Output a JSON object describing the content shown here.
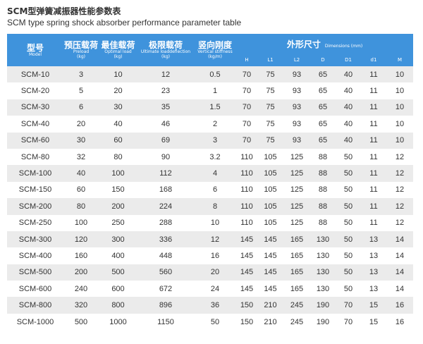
{
  "title_cn": "SCM型弹簧减振器性能参数表",
  "title_en": "SCM type spring shock absorber performance parameter table",
  "table": {
    "header": [
      {
        "cn": "型号",
        "en": "Model"
      },
      {
        "cn": "预压载荷",
        "en": "Preload",
        "unit": "(kg)"
      },
      {
        "cn": "最佳载荷",
        "en": "Optimal load",
        "unit": "(kg)"
      },
      {
        "cn": "极限载荷",
        "en": "Ultimate loaddeflection",
        "unit": "(kg)"
      },
      {
        "cn": "竖向刚度",
        "en": "Vertical stiffness",
        "unit": "(kg/m)"
      }
    ],
    "dimensions": {
      "cn": "外形尺寸",
      "en": "Dimensions (mm)",
      "columns": [
        "H",
        "L1",
        "L2",
        "D",
        "D1",
        "d1",
        "M"
      ]
    },
    "rows": [
      [
        "SCM-10",
        "3",
        "10",
        "12",
        "0.5",
        "70",
        "75",
        "93",
        "65",
        "40",
        "11",
        "10"
      ],
      [
        "SCM-20",
        "5",
        "20",
        "23",
        "1",
        "70",
        "75",
        "93",
        "65",
        "40",
        "11",
        "10"
      ],
      [
        "SCM-30",
        "6",
        "30",
        "35",
        "1.5",
        "70",
        "75",
        "93",
        "65",
        "40",
        "11",
        "10"
      ],
      [
        "SCM-40",
        "20",
        "40",
        "46",
        "2",
        "70",
        "75",
        "93",
        "65",
        "40",
        "11",
        "10"
      ],
      [
        "SCM-60",
        "30",
        "60",
        "69",
        "3",
        "70",
        "75",
        "93",
        "65",
        "40",
        "11",
        "10"
      ],
      [
        "SCM-80",
        "32",
        "80",
        "90",
        "3.2",
        "110",
        "105",
        "125",
        "88",
        "50",
        "11",
        "12"
      ],
      [
        "SCM-100",
        "40",
        "100",
        "112",
        "4",
        "110",
        "105",
        "125",
        "88",
        "50",
        "11",
        "12"
      ],
      [
        "SCM-150",
        "60",
        "150",
        "168",
        "6",
        "110",
        "105",
        "125",
        "88",
        "50",
        "11",
        "12"
      ],
      [
        "SCM-200",
        "80",
        "200",
        "224",
        "8",
        "110",
        "105",
        "125",
        "88",
        "50",
        "11",
        "12"
      ],
      [
        "SCM-250",
        "100",
        "250",
        "288",
        "10",
        "110",
        "105",
        "125",
        "88",
        "50",
        "11",
        "12"
      ],
      [
        "SCM-300",
        "120",
        "300",
        "336",
        "12",
        "145",
        "145",
        "165",
        "130",
        "50",
        "13",
        "14"
      ],
      [
        "SCM-400",
        "160",
        "400",
        "448",
        "16",
        "145",
        "145",
        "165",
        "130",
        "50",
        "13",
        "14"
      ],
      [
        "SCM-500",
        "200",
        "500",
        "560",
        "20",
        "145",
        "145",
        "165",
        "130",
        "50",
        "13",
        "14"
      ],
      [
        "SCM-600",
        "240",
        "600",
        "672",
        "24",
        "145",
        "145",
        "165",
        "130",
        "50",
        "13",
        "14"
      ],
      [
        "SCM-800",
        "320",
        "800",
        "896",
        "36",
        "150",
        "210",
        "245",
        "190",
        "70",
        "15",
        "16"
      ],
      [
        "SCM-1000",
        "500",
        "1000",
        "1150",
        "50",
        "150",
        "210",
        "245",
        "190",
        "70",
        "15",
        "16"
      ]
    ]
  }
}
